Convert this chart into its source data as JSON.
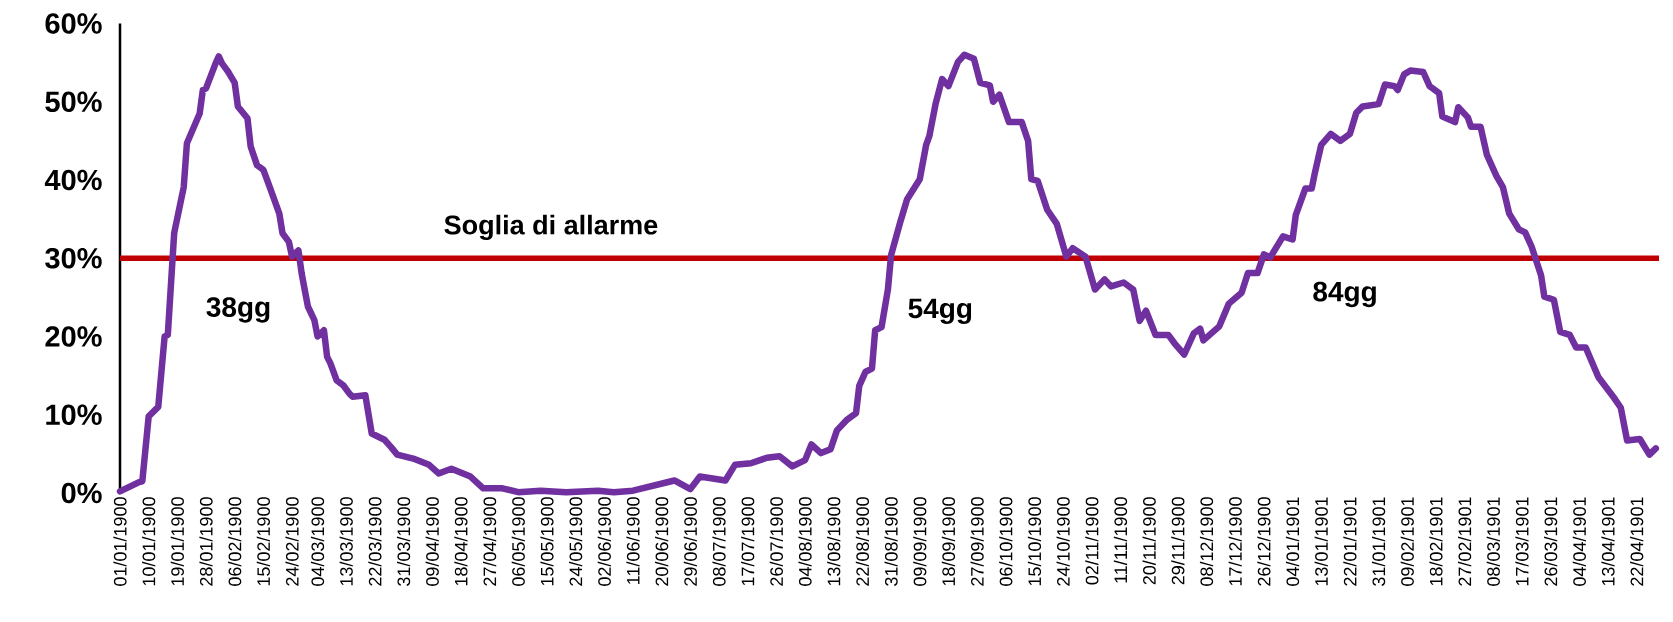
{
  "chart_data": {
    "type": "line",
    "x": [
      "1900-01-01",
      "1900-01-07",
      "1900-01-08",
      "1900-01-10",
      "1900-01-13",
      "1900-01-15",
      "1900-01-16",
      "1900-01-18",
      "1900-01-21",
      "1900-01-22",
      "1900-01-26",
      "1900-01-27",
      "1900-01-28",
      "1900-01-31",
      "1900-02-01",
      "1900-02-02",
      "1900-02-04",
      "1900-02-06",
      "1900-02-07",
      "1900-02-10",
      "1900-02-11",
      "1900-02-13",
      "1900-02-15",
      "1900-02-17",
      "1900-02-20",
      "1900-02-21",
      "1900-02-23",
      "1900-02-24",
      "1900-02-26",
      "1900-02-27",
      "1900-02-28",
      "1900-03-01",
      "1900-03-03",
      "1900-03-04",
      "1900-03-06",
      "1900-03-07",
      "1900-03-08",
      "1900-03-10",
      "1900-03-12",
      "1900-03-14",
      "1900-03-15",
      "1900-03-19",
      "1900-03-21",
      "1900-03-25",
      "1900-03-27",
      "1900-03-29",
      "1900-04-03",
      "1900-04-08",
      "1900-04-11",
      "1900-04-15",
      "1900-04-21",
      "1900-04-25",
      "1900-05-01",
      "1900-05-06",
      "1900-05-13",
      "1900-05-21",
      "1900-05-31",
      "1900-06-05",
      "1900-06-11",
      "1900-06-24",
      "1900-06-29",
      "1900-07-02",
      "1900-07-10",
      "1900-07-13",
      "1900-07-18",
      "1900-07-23",
      "1900-07-27",
      "1900-07-31",
      "1900-08-04",
      "1900-08-06",
      "1900-08-09",
      "1900-08-12",
      "1900-08-14",
      "1900-08-17",
      "1900-08-20",
      "1900-08-21",
      "1900-08-23",
      "1900-08-25",
      "1900-08-26",
      "1900-08-28",
      "1900-08-30",
      "1900-08-31",
      "1900-09-03",
      "1900-09-05",
      "1900-09-09",
      "1900-09-11",
      "1900-09-12",
      "1900-09-14",
      "1900-09-16",
      "1900-09-18",
      "1900-09-21",
      "1900-09-23",
      "1900-09-26",
      "1900-09-28",
      "1900-10-01",
      "1900-10-02",
      "1900-10-04",
      "1900-10-07",
      "1900-10-11",
      "1900-10-13",
      "1900-10-14",
      "1900-10-16",
      "1900-10-19",
      "1900-10-22",
      "1900-10-25",
      "1900-10-27",
      "1900-10-31",
      "1900-11-03",
      "1900-11-06",
      "1900-11-08",
      "1900-11-12",
      "1900-11-15",
      "1900-11-17",
      "1900-11-19",
      "1900-11-22",
      "1900-11-26",
      "1900-11-28",
      "1900-12-01",
      "1900-12-04",
      "1900-12-06",
      "1900-12-07",
      "1900-12-12",
      "1900-12-15",
      "1900-12-19",
      "1900-12-21",
      "1900-12-24",
      "1900-12-26",
      "1900-12-28",
      "1901-01-01",
      "1901-01-04",
      "1901-01-05",
      "1901-01-08",
      "1901-01-10",
      "1901-01-11",
      "1901-01-13",
      "1901-01-16",
      "1901-01-19",
      "1901-01-22",
      "1901-01-24",
      "1901-01-26",
      "1901-01-31",
      "1901-02-02",
      "1901-02-05",
      "1901-02-06",
      "1901-02-08",
      "1901-02-10",
      "1901-02-14",
      "1901-02-16",
      "1901-02-19",
      "1901-02-20",
      "1901-02-24",
      "1901-02-25",
      "1901-02-28",
      "1901-03-01",
      "1901-03-04",
      "1901-03-06",
      "1901-03-09",
      "1901-03-11",
      "1901-03-13",
      "1901-03-16",
      "1901-03-18",
      "1901-03-20",
      "1901-03-23",
      "1901-03-24",
      "1901-03-27",
      "1901-03-29",
      "1901-04-01",
      "1901-04-03",
      "1901-04-06",
      "1901-04-10",
      "1901-04-15",
      "1901-04-17",
      "1901-04-19",
      "1901-04-23",
      "1901-04-26",
      "1901-04-28"
    ],
    "values": [
      0.2,
      1.4,
      1.5,
      9.8,
      11,
      20,
      20.2,
      33.2,
      39.1,
      44.7,
      48.5,
      51.5,
      51.7,
      54.9,
      55.8,
      54.9,
      53.8,
      52.4,
      49.4,
      47.9,
      44.3,
      41.9,
      41.3,
      39.1,
      35.7,
      33.2,
      32.1,
      30.2,
      31,
      28.1,
      25.9,
      23.8,
      22.1,
      20,
      20.8,
      17.4,
      16.6,
      14.4,
      13.8,
      12.7,
      12.3,
      12.5,
      7.6,
      6.8,
      5.9,
      4.9,
      4.4,
      3.6,
      2.5,
      3.1,
      2.1,
      0.6,
      0.6,
      0.1,
      0.3,
      0.1,
      0.3,
      0.1,
      0.3,
      1.6,
      0.5,
      2.1,
      1.6,
      3.6,
      3.8,
      4.5,
      4.7,
      3.4,
      4.2,
      6.2,
      5.1,
      5.6,
      8,
      9.3,
      10.2,
      13.7,
      15.5,
      15.9,
      20.8,
      21.2,
      26,
      30.4,
      34.8,
      37.5,
      40.1,
      44.5,
      45.6,
      49.8,
      52.9,
      52,
      55.1,
      56,
      55.5,
      52.4,
      52.1,
      50,
      50.9,
      47.4,
      47.4,
      45,
      40.1,
      39.9,
      36.2,
      34.4,
      30.2,
      31.3,
      30.2,
      26,
      27.3,
      26.4,
      26.9,
      26,
      22,
      23.3,
      20.2,
      20.2,
      19.1,
      17.7,
      20.4,
      21,
      19.5,
      21.3,
      24.2,
      25.6,
      28.1,
      28.1,
      30.5,
      30.1,
      32.8,
      32.4,
      35.5,
      38.9,
      38.9,
      40.9,
      44.5,
      45.9,
      45,
      45.9,
      48.6,
      49.4,
      49.7,
      52.2,
      52,
      51.5,
      53.5,
      54,
      53.8,
      52,
      51.1,
      48.1,
      47.4,
      49.3,
      48,
      46.8,
      46.8,
      43.2,
      40.5,
      39.1,
      35.7,
      33.7,
      33.3,
      31.5,
      27.8,
      25.1,
      24.7,
      20.6,
      20.2,
      18.6,
      18.6,
      14.8,
      12.1,
      10.9,
      6.7,
      6.9,
      4.9,
      5.7
    ],
    "color": "#7030a0",
    "xlim": [
      "1900-01-01",
      "1901-04-29"
    ],
    "ylim": [
      0,
      60
    ],
    "xticks": [
      {
        "value": "1900-01-01",
        "label": "01/01/1900"
      },
      {
        "value": "1900-01-10",
        "label": "10/01/1900"
      },
      {
        "value": "1900-01-19",
        "label": "19/01/1900"
      },
      {
        "value": "1900-01-28",
        "label": "28/01/1900"
      },
      {
        "value": "1900-02-06",
        "label": "06/02/1900"
      },
      {
        "value": "1900-02-15",
        "label": "15/02/1900"
      },
      {
        "value": "1900-02-24",
        "label": "24/02/1900"
      },
      {
        "value": "1900-03-04",
        "label": "04/03/1900"
      },
      {
        "value": "1900-03-13",
        "label": "13/03/1900"
      },
      {
        "value": "1900-03-22",
        "label": "22/03/1900"
      },
      {
        "value": "1900-03-31",
        "label": "31/03/1900"
      },
      {
        "value": "1900-04-09",
        "label": "09/04/1900"
      },
      {
        "value": "1900-04-18",
        "label": "18/04/1900"
      },
      {
        "value": "1900-04-27",
        "label": "27/04/1900"
      },
      {
        "value": "1900-05-06",
        "label": "06/05/1900"
      },
      {
        "value": "1900-05-15",
        "label": "15/05/1900"
      },
      {
        "value": "1900-05-24",
        "label": "24/05/1900"
      },
      {
        "value": "1900-06-02",
        "label": "02/06/1900"
      },
      {
        "value": "1900-06-11",
        "label": "11/06/1900"
      },
      {
        "value": "1900-06-20",
        "label": "20/06/1900"
      },
      {
        "value": "1900-06-29",
        "label": "29/06/1900"
      },
      {
        "value": "1900-07-08",
        "label": "08/07/1900"
      },
      {
        "value": "1900-07-17",
        "label": "17/07/1900"
      },
      {
        "value": "1900-07-26",
        "label": "26/07/1900"
      },
      {
        "value": "1900-08-04",
        "label": "04/08/1900"
      },
      {
        "value": "1900-08-13",
        "label": "13/08/1900"
      },
      {
        "value": "1900-08-22",
        "label": "22/08/1900"
      },
      {
        "value": "1900-08-31",
        "label": "31/08/1900"
      },
      {
        "value": "1900-09-09",
        "label": "09/09/1900"
      },
      {
        "value": "1900-09-18",
        "label": "18/09/1900"
      },
      {
        "value": "1900-09-27",
        "label": "27/09/1900"
      },
      {
        "value": "1900-10-06",
        "label": "06/10/1900"
      },
      {
        "value": "1900-10-15",
        "label": "15/10/1900"
      },
      {
        "value": "1900-10-24",
        "label": "24/10/1900"
      },
      {
        "value": "1900-11-02",
        "label": "02/11/1900"
      },
      {
        "value": "1900-11-11",
        "label": "11/11/1900"
      },
      {
        "value": "1900-11-20",
        "label": "20/11/1900"
      },
      {
        "value": "1900-11-29",
        "label": "29/11/1900"
      },
      {
        "value": "1900-12-08",
        "label": "08/12/1900"
      },
      {
        "value": "1900-12-17",
        "label": "17/12/1900"
      },
      {
        "value": "1900-12-26",
        "label": "26/12/1900"
      },
      {
        "value": "1901-01-04",
        "label": "04/01/1901"
      },
      {
        "value": "1901-01-13",
        "label": "13/01/1901"
      },
      {
        "value": "1901-01-22",
        "label": "22/01/1901"
      },
      {
        "value": "1901-01-31",
        "label": "31/01/1901"
      },
      {
        "value": "1901-02-09",
        "label": "09/02/1901"
      },
      {
        "value": "1901-02-18",
        "label": "18/02/1901"
      },
      {
        "value": "1901-02-27",
        "label": "27/02/1901"
      },
      {
        "value": "1901-03-08",
        "label": "08/03/1901"
      },
      {
        "value": "1901-03-17",
        "label": "17/03/1901"
      },
      {
        "value": "1901-03-26",
        "label": "26/03/1901"
      },
      {
        "value": "1901-04-04",
        "label": "04/04/1901"
      },
      {
        "value": "1901-04-13",
        "label": "13/04/1901"
      },
      {
        "value": "1901-04-22",
        "label": "22/04/1901"
      }
    ],
    "yticks": [
      {
        "value": 0,
        "label": "0%"
      },
      {
        "value": 10,
        "label": "10%"
      },
      {
        "value": 20,
        "label": "20%"
      },
      {
        "value": 30,
        "label": "30%"
      },
      {
        "value": 40,
        "label": "40%"
      },
      {
        "value": 50,
        "label": "50%"
      },
      {
        "value": 60,
        "label": "60%"
      }
    ],
    "ref_lines": [
      {
        "axis": "y",
        "value": 30,
        "label": "Soglia di allarme",
        "color": "#c00000"
      }
    ],
    "annotations": [
      "38gg",
      "54gg",
      "84gg"
    ]
  }
}
